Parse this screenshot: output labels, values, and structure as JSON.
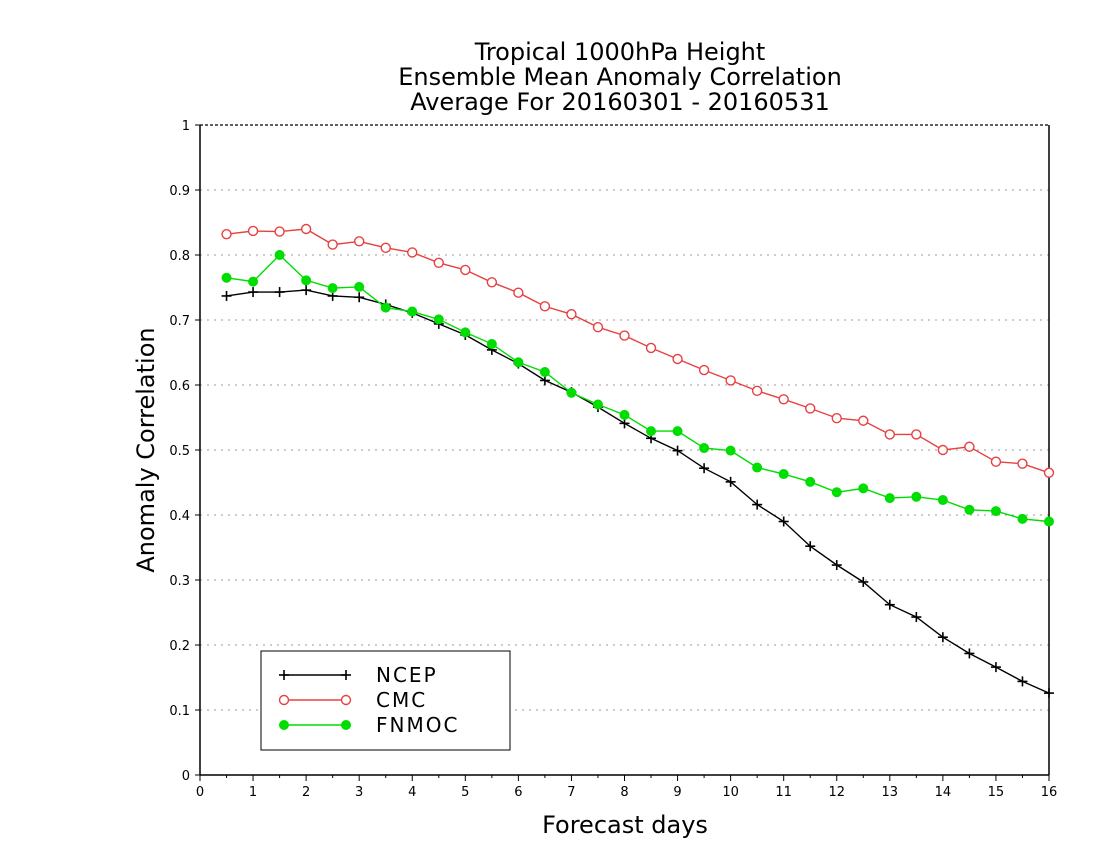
{
  "chart_data": {
    "type": "line",
    "title_lines": [
      "Tropical 1000hPa Height",
      "Ensemble Mean Anomaly Correlation",
      "Average For 20160301 - 20160531"
    ],
    "xlabel": "Forecast days",
    "ylabel": "Anomaly Correlation",
    "xlim": [
      0,
      16
    ],
    "ylim": [
      0,
      1
    ],
    "x_ticks": [
      "0",
      "1",
      "2",
      "3",
      "4",
      "5",
      "6",
      "7",
      "8",
      "9",
      "10",
      "11",
      "12",
      "13",
      "14",
      "15",
      "16"
    ],
    "y_ticks": [
      "0",
      "0.1",
      "0.2",
      "0.3",
      "0.4",
      "0.5",
      "0.6",
      "0.7",
      "0.8",
      "0.9",
      "1"
    ],
    "grid": "horizontal dotted",
    "legend_position": "bottom-left",
    "x": [
      0.5,
      1,
      1.5,
      2,
      2.5,
      3,
      3.5,
      4,
      4.5,
      5,
      5.5,
      6,
      6.5,
      7,
      7.5,
      8,
      8.5,
      9,
      9.5,
      10,
      10.5,
      11,
      11.5,
      12,
      12.5,
      13,
      13.5,
      14,
      14.5,
      15,
      15.5,
      16
    ],
    "series": [
      {
        "name": "NCEP",
        "color": "#000000",
        "marker": "plus",
        "values": [
          0.737,
          0.743,
          0.743,
          0.746,
          0.737,
          0.735,
          0.724,
          0.711,
          0.694,
          0.677,
          0.654,
          0.633,
          0.607,
          0.589,
          0.566,
          0.541,
          0.518,
          0.499,
          0.472,
          0.451,
          0.416,
          0.39,
          0.352,
          0.323,
          0.297,
          0.262,
          0.243,
          0.212,
          0.187,
          0.166,
          0.144,
          0.126
        ]
      },
      {
        "name": "CMC",
        "color": "#e84040",
        "marker": "open-circle",
        "values": [
          0.832,
          0.837,
          0.836,
          0.84,
          0.816,
          0.821,
          0.811,
          0.804,
          0.788,
          0.777,
          0.758,
          0.742,
          0.721,
          0.709,
          0.689,
          0.676,
          0.657,
          0.64,
          0.623,
          0.607,
          0.591,
          0.578,
          0.564,
          0.549,
          0.545,
          0.524,
          0.524,
          0.5,
          0.505,
          0.482,
          0.479,
          0.465
        ]
      },
      {
        "name": "FNMOC",
        "color": "#00dd00",
        "marker": "filled-circle",
        "values": [
          0.765,
          0.759,
          0.8,
          0.761,
          0.749,
          0.751,
          0.719,
          0.713,
          0.701,
          0.681,
          0.663,
          0.635,
          0.62,
          0.588,
          0.57,
          0.554,
          0.529,
          0.529,
          0.503,
          0.499,
          0.473,
          0.463,
          0.451,
          0.435,
          0.441,
          0.426,
          0.428,
          0.423,
          0.408,
          0.406,
          0.394,
          0.39
        ]
      }
    ]
  }
}
